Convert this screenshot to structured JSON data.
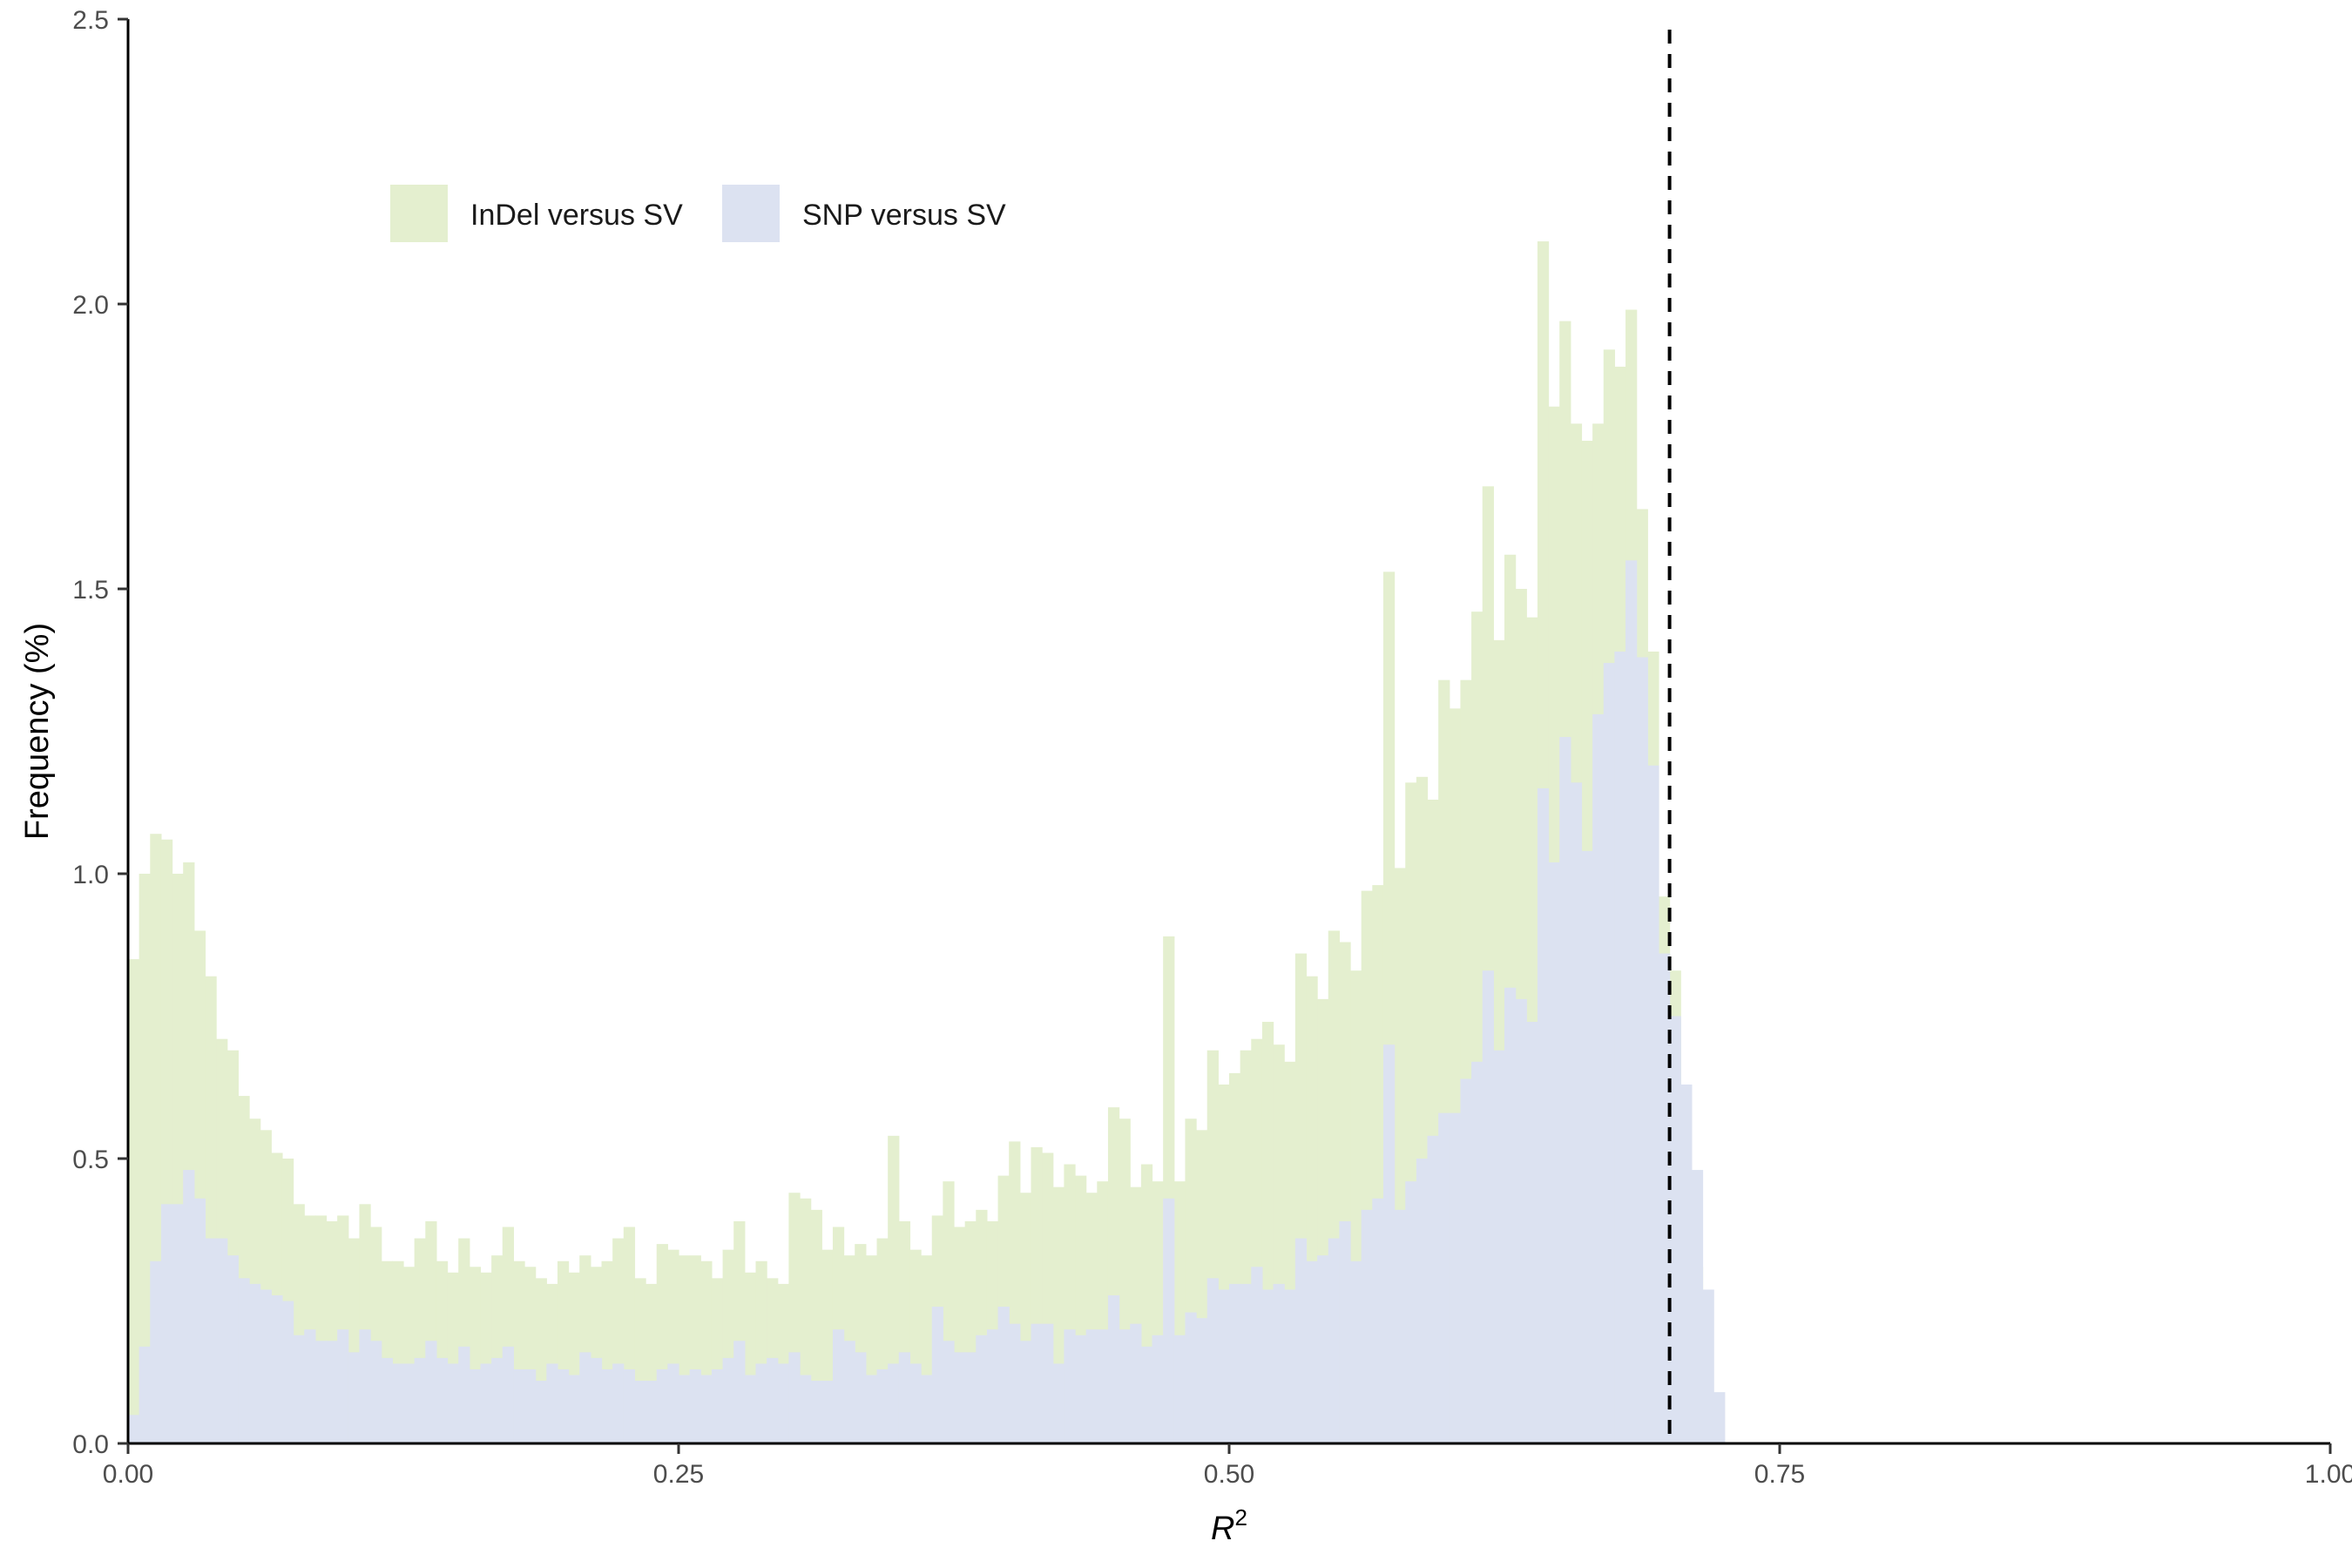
{
  "chart_data": {
    "type": "bar",
    "subtype": "histogram",
    "xlabel": "R",
    "xlabel_superscript": "2",
    "ylabel": "Frequency (%)",
    "xlim": [
      0.0,
      1.0
    ],
    "ylim": [
      0.0,
      2.5
    ],
    "x_ticks": [
      0.0,
      0.25,
      0.5,
      0.75,
      1.0
    ],
    "x_tick_labels": [
      "0.00",
      "0.25",
      "0.50",
      "0.75",
      "1.00"
    ],
    "y_ticks": [
      0.0,
      0.5,
      1.0,
      1.5,
      2.0,
      2.5
    ],
    "y_tick_labels": [
      "0.0",
      "0.5",
      "1.0",
      "1.5",
      "2.0",
      "2.5"
    ],
    "grid": false,
    "legend_placement": "top-left",
    "bin_start": 0.0,
    "bin_width": 0.005,
    "reference_line": {
      "x": 0.7,
      "style": "dashed",
      "color": "#000000"
    },
    "series": [
      {
        "name": "InDel versus SV",
        "color": "#e4efcf",
        "values": [
          0.85,
          1.0,
          1.07,
          1.06,
          1.0,
          1.02,
          0.9,
          0.82,
          0.71,
          0.69,
          0.61,
          0.57,
          0.55,
          0.51,
          0.5,
          0.42,
          0.4,
          0.4,
          0.39,
          0.4,
          0.36,
          0.42,
          0.38,
          0.32,
          0.32,
          0.31,
          0.36,
          0.39,
          0.32,
          0.3,
          0.36,
          0.31,
          0.3,
          0.33,
          0.38,
          0.32,
          0.31,
          0.29,
          0.28,
          0.32,
          0.3,
          0.33,
          0.31,
          0.32,
          0.36,
          0.38,
          0.29,
          0.28,
          0.35,
          0.34,
          0.33,
          0.33,
          0.32,
          0.29,
          0.34,
          0.39,
          0.3,
          0.32,
          0.29,
          0.28,
          0.44,
          0.43,
          0.41,
          0.34,
          0.38,
          0.33,
          0.35,
          0.33,
          0.36,
          0.54,
          0.39,
          0.34,
          0.33,
          0.4,
          0.46,
          0.38,
          0.39,
          0.41,
          0.39,
          0.47,
          0.53,
          0.44,
          0.52,
          0.51,
          0.45,
          0.49,
          0.47,
          0.44,
          0.46,
          0.59,
          0.57,
          0.45,
          0.49,
          0.46,
          0.89,
          0.46,
          0.57,
          0.55,
          0.69,
          0.63,
          0.65,
          0.69,
          0.71,
          0.74,
          0.7,
          0.67,
          0.86,
          0.82,
          0.78,
          0.9,
          0.88,
          0.83,
          0.97,
          0.98,
          1.53,
          1.01,
          1.16,
          1.17,
          1.13,
          1.34,
          1.29,
          1.34,
          1.46,
          1.68,
          1.41,
          1.56,
          1.5,
          1.45,
          2.11,
          1.82,
          1.97,
          1.79,
          1.76,
          1.79,
          1.92,
          1.89,
          1.99,
          1.64,
          1.39,
          0.96,
          0.83,
          0.49,
          0.31,
          0.0,
          0.0,
          0.0,
          0.0,
          0.0,
          0.0,
          0.0
        ]
      },
      {
        "name": "SNP versus SV",
        "color": "#dce2f1",
        "values": [
          0.05,
          0.17,
          0.32,
          0.42,
          0.42,
          0.48,
          0.43,
          0.36,
          0.36,
          0.33,
          0.29,
          0.28,
          0.27,
          0.26,
          0.25,
          0.19,
          0.2,
          0.18,
          0.18,
          0.2,
          0.16,
          0.2,
          0.18,
          0.15,
          0.14,
          0.14,
          0.15,
          0.18,
          0.15,
          0.14,
          0.17,
          0.13,
          0.14,
          0.15,
          0.17,
          0.13,
          0.13,
          0.11,
          0.14,
          0.13,
          0.12,
          0.16,
          0.15,
          0.13,
          0.14,
          0.13,
          0.11,
          0.11,
          0.13,
          0.14,
          0.12,
          0.13,
          0.12,
          0.13,
          0.15,
          0.18,
          0.12,
          0.14,
          0.15,
          0.14,
          0.16,
          0.12,
          0.11,
          0.11,
          0.2,
          0.18,
          0.16,
          0.12,
          0.13,
          0.14,
          0.16,
          0.14,
          0.12,
          0.24,
          0.18,
          0.16,
          0.16,
          0.19,
          0.2,
          0.24,
          0.21,
          0.18,
          0.21,
          0.21,
          0.14,
          0.2,
          0.19,
          0.2,
          0.2,
          0.26,
          0.2,
          0.21,
          0.17,
          0.19,
          0.43,
          0.19,
          0.23,
          0.22,
          0.29,
          0.27,
          0.28,
          0.28,
          0.31,
          0.27,
          0.28,
          0.27,
          0.36,
          0.32,
          0.33,
          0.36,
          0.39,
          0.32,
          0.41,
          0.43,
          0.7,
          0.41,
          0.46,
          0.5,
          0.54,
          0.58,
          0.58,
          0.64,
          0.67,
          0.83,
          0.69,
          0.8,
          0.78,
          0.74,
          1.15,
          1.02,
          1.24,
          1.16,
          1.04,
          1.28,
          1.37,
          1.39,
          1.55,
          1.38,
          1.19,
          0.86,
          0.75,
          0.63,
          0.48,
          0.27,
          0.09,
          0.0,
          0.0,
          0.0,
          0.0,
          0.0
        ]
      }
    ]
  }
}
